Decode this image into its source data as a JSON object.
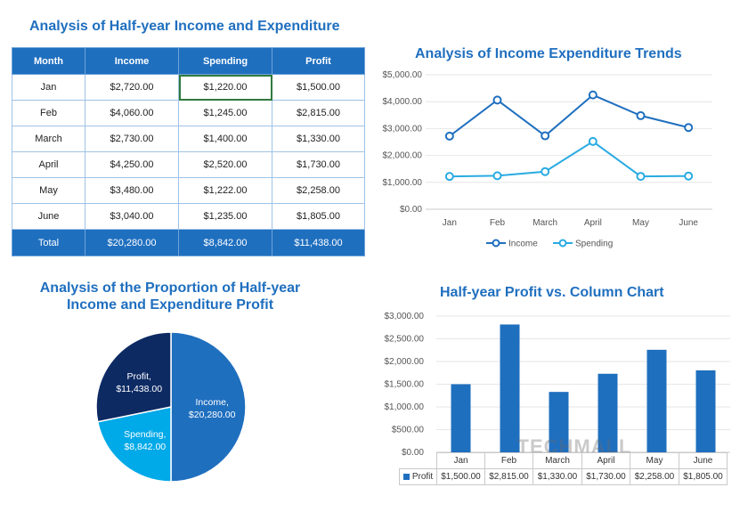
{
  "titles": {
    "table": "Analysis of Half-year Income and Expenditure",
    "line": "Analysis of Income Expenditure Trends",
    "pie_line1": "Analysis of the Proportion of Half-year",
    "pie_line2": "Income and Expenditure Profit",
    "bar": "Half-year Profit vs. Column Chart"
  },
  "table": {
    "headers": [
      "Month",
      "Income",
      "Spending",
      "Profit"
    ],
    "rows": [
      [
        "Jan",
        "$2,720.00",
        "$1,220.00",
        "$1,500.00"
      ],
      [
        "Feb",
        "$4,060.00",
        "$1,245.00",
        "$2,815.00"
      ],
      [
        "March",
        "$2,730.00",
        "$1,400.00",
        "$1,330.00"
      ],
      [
        "April",
        "$4,250.00",
        "$2,520.00",
        "$1,730.00"
      ],
      [
        "May",
        "$3,480.00",
        "$1,222.00",
        "$2,258.00"
      ],
      [
        "June",
        "$3,040.00",
        "$1,235.00",
        "$1,805.00"
      ]
    ],
    "total": [
      "Total",
      "$20,280.00",
      "$8,842.00",
      "$11,438.00"
    ]
  },
  "colors": {
    "header_blue": "#1f6fbf",
    "income_line": "#1f6fbf",
    "spending_line": "#29abe2",
    "pie_income": "#1f6fbf",
    "pie_spending": "#00a9e8",
    "pie_profit": "#0d2a63",
    "bar": "#1f6fbf"
  },
  "watermark": "TECHMALL",
  "chart_data": [
    {
      "type": "line",
      "title": "Analysis of Income Expenditure Trends",
      "categories": [
        "Jan",
        "Feb",
        "March",
        "April",
        "May",
        "June"
      ],
      "series": [
        {
          "name": "Income",
          "values": [
            2720,
            4060,
            2730,
            4250,
            3480,
            3040
          ]
        },
        {
          "name": "Spending",
          "values": [
            1220,
            1245,
            1400,
            2520,
            1222,
            1235
          ]
        }
      ],
      "yticks": [
        "$0.00",
        "$1,000.00",
        "$2,000.00",
        "$3,000.00",
        "$4,000.00",
        "$5,000.00"
      ],
      "ylim": [
        0,
        5000
      ],
      "grid": true,
      "legend": "bottom"
    },
    {
      "type": "pie",
      "title": "Analysis of the Proportion of Half-year Income and Expenditure Profit",
      "slices": [
        {
          "name": "Income",
          "label": "$20,280.00",
          "value": 20280
        },
        {
          "name": "Spending",
          "label": "$8,842.00",
          "value": 8842
        },
        {
          "name": "Profit",
          "label": "$11,438.00",
          "value": 11438
        }
      ],
      "label_names": [
        "Income,",
        "Spending,",
        "Profit,"
      ]
    },
    {
      "type": "bar",
      "title": "Half-year Profit vs. Column Chart",
      "categories": [
        "Jan",
        "Feb",
        "March",
        "April",
        "May",
        "June"
      ],
      "series": [
        {
          "name": "Profit",
          "values": [
            1500,
            2815,
            1330,
            1730,
            2258,
            1805
          ]
        }
      ],
      "value_labels": [
        "$1,500.00",
        "$2,815.00",
        "$1,330.00",
        "$1,730.00",
        "$2,258.00",
        "$1,805.00"
      ],
      "yticks": [
        "$0.00",
        "$500.00",
        "$1,000.00",
        "$1,500.00",
        "$2,000.00",
        "$2,500.00",
        "$3,000.00"
      ],
      "ylim": [
        0,
        3000
      ],
      "grid": true,
      "legend": "data-table"
    }
  ]
}
